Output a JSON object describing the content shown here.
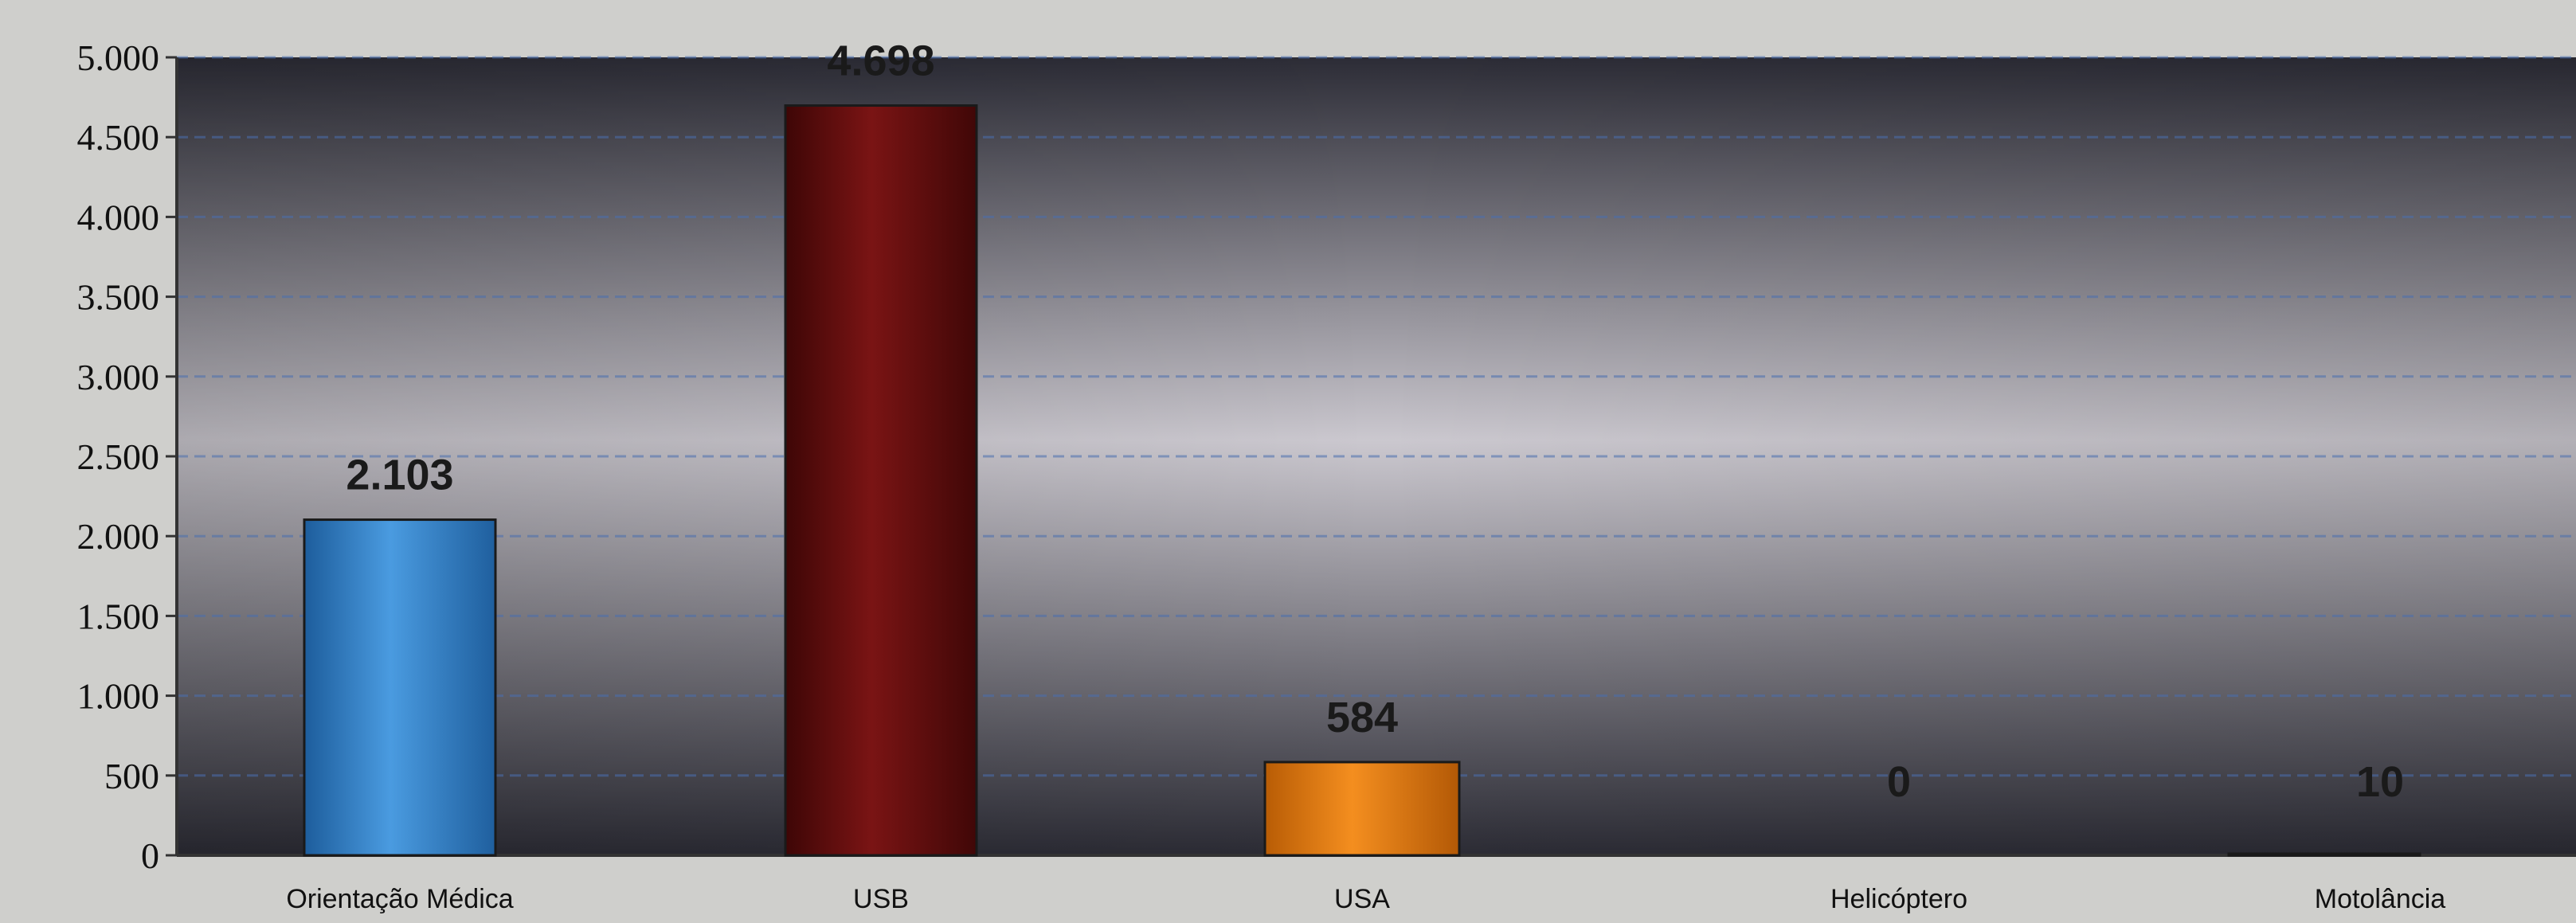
{
  "chart_data": {
    "type": "bar",
    "title": "",
    "xlabel": "",
    "ylabel": "",
    "categories": [
      "Orientação Médica",
      "USB",
      "USA",
      "Helicóptero",
      "Motolância"
    ],
    "values": [
      2103,
      4698,
      584,
      0,
      10
    ],
    "value_labels": [
      "2.103",
      "4.698",
      "584",
      "0",
      "10"
    ],
    "ylim": [
      0,
      5000
    ],
    "yticks": [
      0,
      500,
      1000,
      1500,
      2000,
      2500,
      3000,
      3500,
      4000,
      4500,
      5000
    ],
    "ytick_labels": [
      "0",
      "500",
      "1.000",
      "1.500",
      "2.000",
      "2.500",
      "3.000",
      "3.500",
      "4.000",
      "4.500",
      "5.000"
    ],
    "grid": true,
    "legend": "none",
    "colors": {
      "bars": [
        "#3a86cf",
        "#6b0f0f",
        "#e07a10",
        "#8a8a8a",
        "#8a8a8a"
      ],
      "plot_dark": "#2e2e38",
      "plot_light": "#c9c6cc",
      "grid": "#4a6fb0",
      "label_text": "#1a1a1a",
      "page_background": "#cfcfcc"
    }
  }
}
